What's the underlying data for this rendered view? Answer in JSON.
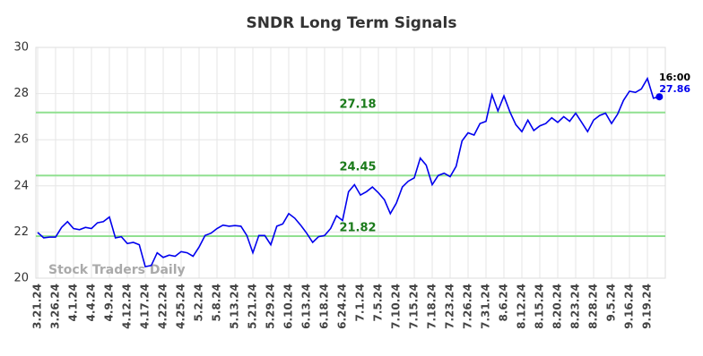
{
  "chart_data": {
    "type": "line",
    "title": "SNDR Long Term Signals",
    "categories": [
      "3.21.24",
      null,
      null,
      "3.26.24",
      null,
      null,
      "4.1.24",
      null,
      null,
      "4.4.24",
      null,
      null,
      "4.9.24",
      null,
      null,
      "4.12.24",
      null,
      null,
      "4.17.24",
      null,
      null,
      "4.22.24",
      null,
      null,
      "4.25.24",
      null,
      null,
      "5.2.24",
      null,
      null,
      "5.8.24",
      null,
      null,
      "5.13.24",
      null,
      null,
      "5.21.24",
      null,
      null,
      "5.29.24",
      null,
      null,
      "6.10.24",
      null,
      null,
      "6.13.24",
      null,
      null,
      "6.18.24",
      null,
      null,
      "6.24.24",
      null,
      null,
      "7.1.24",
      null,
      null,
      "7.5.24",
      null,
      null,
      "7.10.24",
      null,
      null,
      "7.15.24",
      null,
      null,
      "7.18.24",
      null,
      null,
      "7.23.24",
      null,
      null,
      "7.26.24",
      null,
      null,
      "7.31.24",
      null,
      null,
      "8.6.24",
      null,
      null,
      "8.12.24",
      null,
      null,
      "8.15.24",
      null,
      null,
      "8.20.24",
      null,
      null,
      "8.23.24",
      null,
      null,
      "8.28.24",
      null,
      null,
      "9.5.24",
      null,
      null,
      "9.16.24",
      null,
      null,
      "9.19.24",
      null,
      null
    ],
    "values": [
      21.98,
      21.75,
      21.78,
      21.78,
      22.2,
      22.45,
      22.15,
      22.1,
      22.2,
      22.15,
      22.4,
      22.45,
      22.65,
      21.75,
      21.8,
      21.5,
      21.55,
      21.45,
      20.5,
      20.55,
      21.1,
      20.9,
      21.0,
      20.95,
      21.15,
      21.1,
      20.95,
      21.35,
      21.85,
      21.95,
      22.15,
      22.3,
      22.25,
      22.28,
      22.25,
      21.85,
      21.1,
      21.85,
      21.85,
      21.45,
      22.25,
      22.35,
      22.8,
      22.6,
      22.3,
      21.95,
      21.55,
      21.8,
      21.85,
      22.15,
      22.7,
      22.5,
      23.75,
      24.05,
      23.6,
      23.75,
      23.95,
      23.7,
      23.4,
      22.8,
      23.25,
      23.95,
      24.2,
      24.35,
      25.2,
      24.9,
      24.05,
      24.45,
      24.55,
      24.4,
      24.85,
      25.95,
      26.3,
      26.2,
      26.7,
      26.8,
      27.95,
      27.25,
      27.9,
      27.2,
      26.65,
      26.35,
      26.85,
      26.4,
      26.6,
      26.7,
      26.95,
      26.75,
      27.0,
      26.8,
      27.15,
      26.75,
      26.35,
      26.85,
      27.05,
      27.15,
      26.7,
      27.1,
      27.7,
      28.1,
      28.05,
      28.2,
      28.65,
      27.8,
      27.86
    ],
    "color": "#0000ee",
    "ylim": [
      20,
      30
    ],
    "yticks": [
      20,
      22,
      24,
      26,
      28,
      30
    ],
    "grid": true,
    "reference_lines": [
      {
        "value": 27.18,
        "color": "#90e090"
      },
      {
        "value": 24.45,
        "color": "#90e090"
      },
      {
        "value": 21.82,
        "color": "#90e090"
      }
    ],
    "last_time_label": "16:00",
    "watermark": "Stock Traders Daily"
  }
}
